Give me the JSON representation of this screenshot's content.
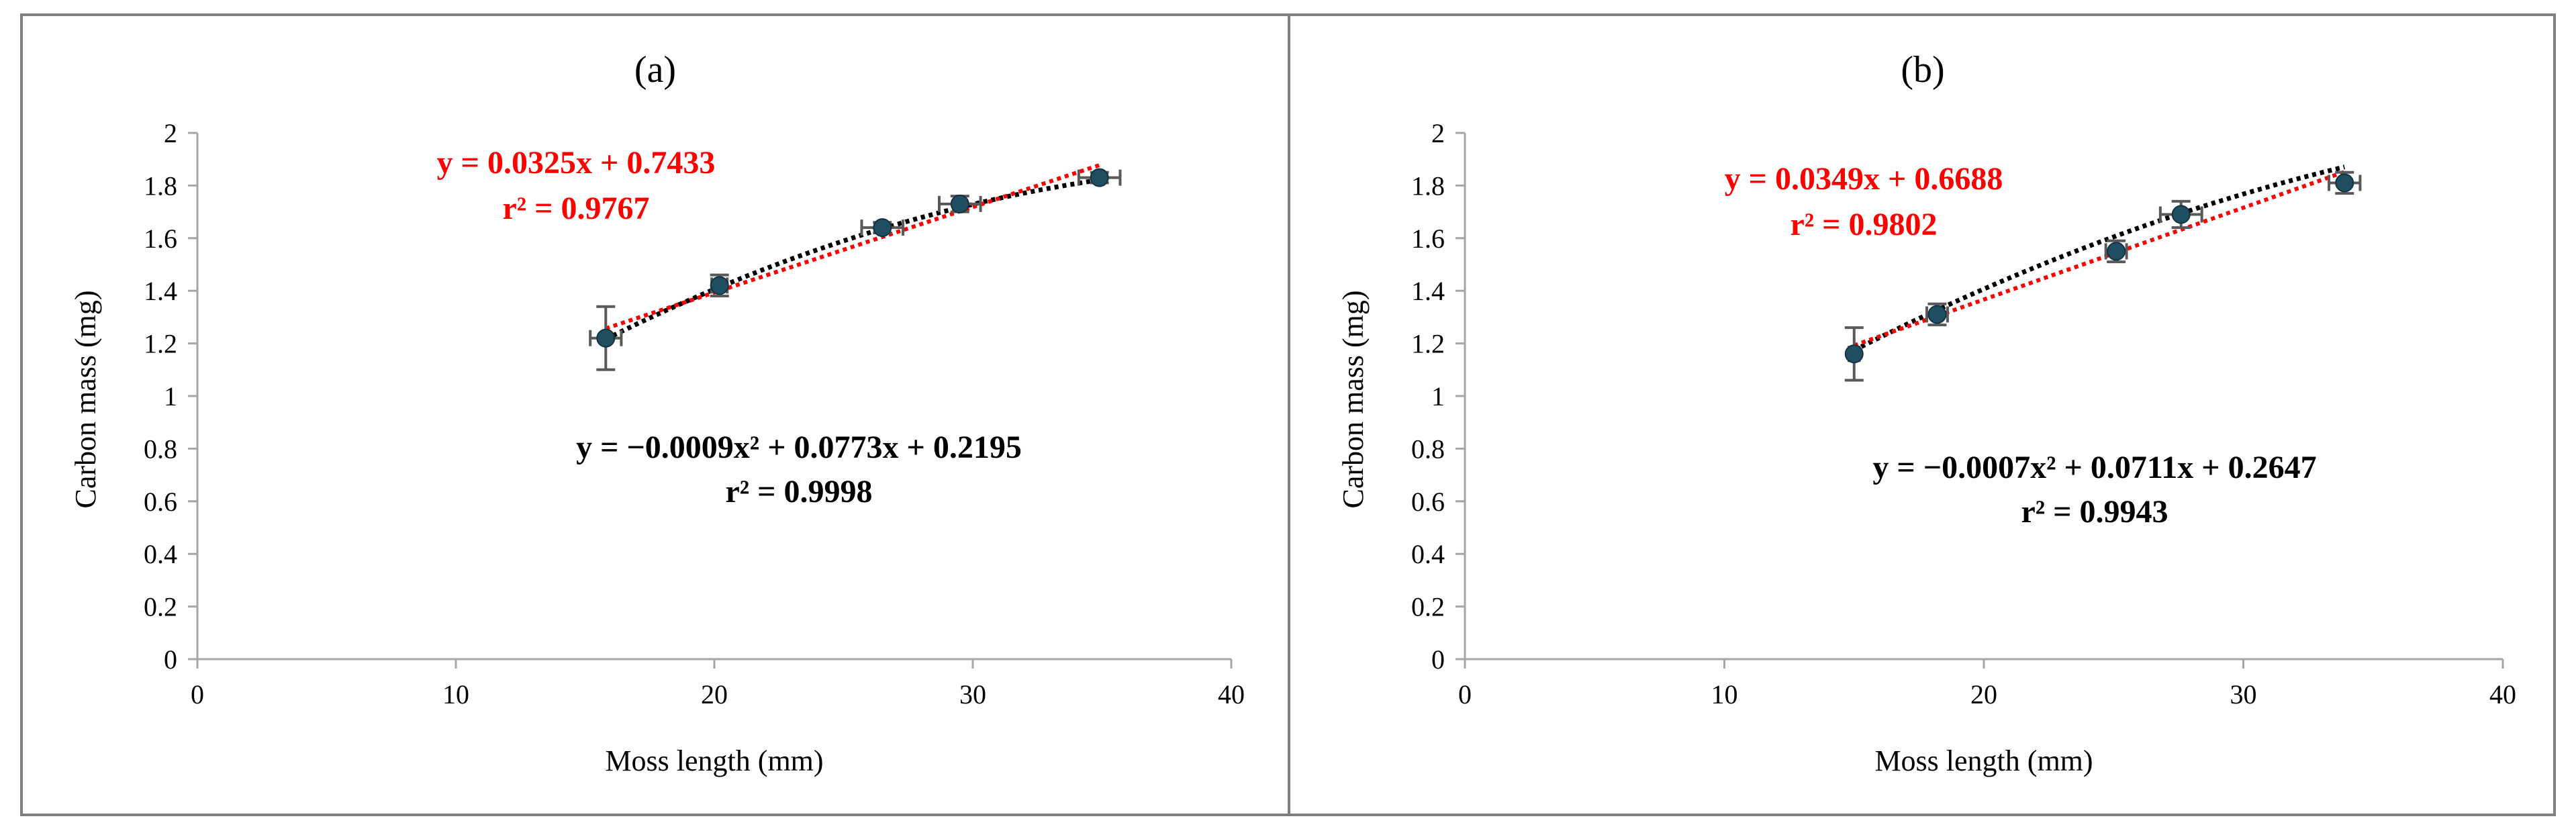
{
  "chart_data": [
    {
      "type": "scatter",
      "panel_label": "(a)",
      "xlabel": "Moss length (mm)",
      "ylabel": "Carbon mass (mg)",
      "xlim": [
        0,
        40
      ],
      "ylim": [
        0,
        2
      ],
      "xticks": [
        0,
        10,
        20,
        30,
        40
      ],
      "yticks": [
        0,
        0.2,
        0.4,
        0.6,
        0.8,
        1,
        1.2,
        1.4,
        1.6,
        1.8,
        2
      ],
      "x_tick_labels": [
        "0",
        "10",
        "20",
        "30",
        "40"
      ],
      "y_tick_labels": [
        "0",
        "0.2",
        "0.4",
        "0.6",
        "0.8",
        "1",
        "1.2",
        "1.4",
        "1.6",
        "1.8",
        "2"
      ],
      "grid": false,
      "points": [
        {
          "x": 15.8,
          "y": 1.22,
          "xerr": 0.6,
          "yerr": 0.12
        },
        {
          "x": 20.2,
          "y": 1.42,
          "xerr": 0.3,
          "yerr": 0.04
        },
        {
          "x": 26.5,
          "y": 1.64,
          "xerr": 0.8,
          "yerr": 0.02
        },
        {
          "x": 29.5,
          "y": 1.73,
          "xerr": 0.8,
          "yerr": 0.03
        },
        {
          "x": 34.9,
          "y": 1.83,
          "xerr": 0.8,
          "yerr": 0.02
        }
      ],
      "linear_fit": {
        "slope": 0.0325,
        "intercept": 0.7433,
        "x_range": [
          15.8,
          34.9
        ],
        "color": "#ff0000",
        "equation": "y = 0.0325x + 0.7433",
        "r2": "r² = 0.9767"
      },
      "poly_fit": {
        "a": -0.0009,
        "b": 0.0773,
        "c": 0.2195,
        "x_range": [
          15.8,
          34.9
        ],
        "color": "#000000",
        "equation": "y = −0.0009x² + 0.0773x + 0.2195",
        "r2": "r² = 0.9998"
      },
      "marker_color": "#1f4e63"
    },
    {
      "type": "scatter",
      "panel_label": "(b)",
      "xlabel": "Moss length (mm)",
      "ylabel": "Carbon mass (mg)",
      "xlim": [
        0,
        40
      ],
      "ylim": [
        0,
        2
      ],
      "xticks": [
        0,
        10,
        20,
        30,
        40
      ],
      "yticks": [
        0,
        0.2,
        0.4,
        0.6,
        0.8,
        1,
        1.2,
        1.4,
        1.6,
        1.8,
        2
      ],
      "x_tick_labels": [
        "0",
        "10",
        "20",
        "30",
        "40"
      ],
      "y_tick_labels": [
        "0",
        "0.2",
        "0.4",
        "0.6",
        "0.8",
        "1",
        "1.2",
        "1.4",
        "1.6",
        "1.8",
        "2"
      ],
      "grid": false,
      "points": [
        {
          "x": 15.0,
          "y": 1.16,
          "xerr": 0.2,
          "yerr": 0.1
        },
        {
          "x": 18.2,
          "y": 1.31,
          "xerr": 0.4,
          "yerr": 0.04
        },
        {
          "x": 25.1,
          "y": 1.55,
          "xerr": 0.4,
          "yerr": 0.04
        },
        {
          "x": 27.6,
          "y": 1.69,
          "xerr": 0.8,
          "yerr": 0.05
        },
        {
          "x": 33.9,
          "y": 1.81,
          "xerr": 0.6,
          "yerr": 0.04
        }
      ],
      "linear_fit": {
        "slope": 0.0349,
        "intercept": 0.6688,
        "x_range": [
          15.0,
          33.9
        ],
        "color": "#ff0000",
        "equation": "y = 0.0349x + 0.6688",
        "r2": "r² = 0.9802"
      },
      "poly_fit": {
        "a": -0.0007,
        "b": 0.0711,
        "c": 0.2647,
        "x_range": [
          15.0,
          33.9
        ],
        "color": "#000000",
        "equation": "y = −0.0007x² + 0.0711x + 0.2647",
        "r2": "r² = 0.9943"
      },
      "marker_color": "#1f4e63"
    }
  ]
}
